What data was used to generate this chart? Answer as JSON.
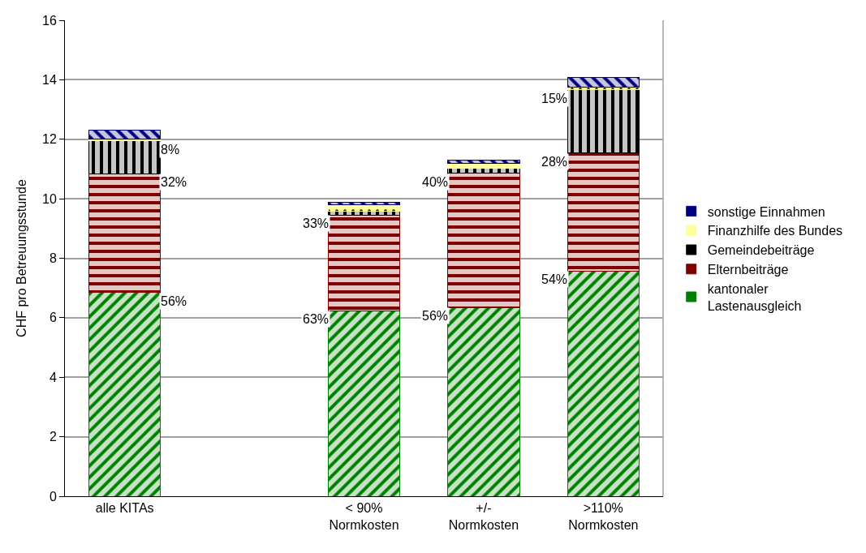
{
  "chart_data": {
    "type": "bar",
    "stacked": true,
    "ylabel": "CHF pro Betreuungsstunde",
    "categories": [
      "alle KITAs",
      null,
      "< 90%\nNormkosten",
      "+/-\nNormkosten",
      ">110%\nNormkosten"
    ],
    "series": [
      {
        "name": "kantonaler\nLastenausgleich",
        "color": "#008000",
        "values": [
          6.85,
          null,
          6.23,
          6.34,
          7.57
        ]
      },
      {
        "name": "Elternbeiträge",
        "color": "#800000",
        "values": [
          3.99,
          null,
          3.22,
          4.51,
          3.96
        ]
      },
      {
        "name": "Gemeindebeiträge",
        "color": "#000000",
        "values": [
          1.1,
          null,
          0.13,
          0.18,
          2.13
        ]
      },
      {
        "name": "Finanzhilfe des Bundes",
        "color": "#ffff99",
        "values": [
          0.07,
          null,
          0.21,
          0.17,
          0.08
        ]
      },
      {
        "name": "sonstige Einnahmen",
        "color": "#000080",
        "values": [
          0.3,
          null,
          0.08,
          0.09,
          0.33
        ]
      }
    ],
    "annotations": [
      {
        "text": "56%",
        "x": "alle KITAs",
        "y": 6.85
      },
      {
        "text": "32%",
        "x": "alle KITAs",
        "y": 10.84
      },
      {
        "text": "8%",
        "x": "alle KITAs",
        "y": 11.94
      },
      {
        "text": "63%",
        "x": "< 90%\nNormkosten",
        "y": 6.23
      },
      {
        "text": "33%",
        "x": "< 90%\nNormkosten",
        "y": 9.45
      },
      {
        "text": "56%",
        "x": "+/-\nNormkosten",
        "y": 6.34
      },
      {
        "text": "40%",
        "x": "+/-\nNormkosten",
        "y": 10.85
      },
      {
        "text": "54%",
        "x": ">110%\nNormkosten",
        "y": 7.57
      },
      {
        "text": "28%",
        "x": ">110%\nNormkosten",
        "y": 11.53
      },
      {
        "text": "15%",
        "x": ">110%\nNormkosten",
        "y": 13.66
      }
    ],
    "ylim": [
      0,
      16
    ],
    "yticks": [
      0,
      2,
      4,
      6,
      8,
      10,
      12,
      14,
      16
    ],
    "grid": "y",
    "legend": "right"
  }
}
